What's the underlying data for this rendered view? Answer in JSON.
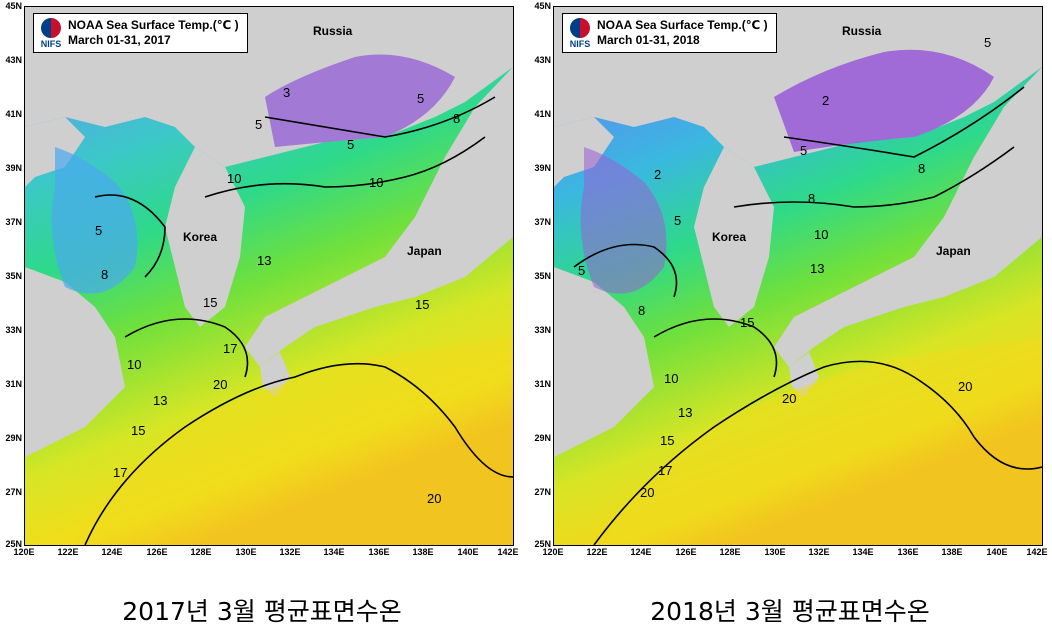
{
  "panels": [
    {
      "legend_title": "NOAA Sea Surface Temp.(℃ )",
      "legend_period": "March 01-31, 2017",
      "logo_text": "NIFS",
      "caption": "2017년 3월 평균표면수온",
      "geo_labels": {
        "russia": "Russia",
        "korea": "Korea",
        "japan": "Japan"
      },
      "isotherm_labels": [
        "3",
        "5",
        "5",
        "5",
        "5",
        "8",
        "8",
        "10",
        "10",
        "10",
        "13",
        "13",
        "15",
        "15",
        "15",
        "17",
        "17",
        "20",
        "20"
      ]
    },
    {
      "legend_title": "NOAA Sea Surface Temp.(℃ )",
      "legend_period": "March 01-31, 2018",
      "logo_text": "NIFS",
      "caption": "2018년 3월 평균표면수온",
      "geo_labels": {
        "russia": "Russia",
        "korea": "Korea",
        "japan": "Japan"
      },
      "isotherm_labels": [
        "2",
        "2",
        "5",
        "5",
        "5",
        "5",
        "8",
        "8",
        "8",
        "10",
        "10",
        "13",
        "13",
        "15",
        "15",
        "17",
        "20",
        "20",
        "20"
      ]
    }
  ],
  "lat_ticks": [
    "45N",
    "43N",
    "41N",
    "39N",
    "37N",
    "35N",
    "33N",
    "31N",
    "29N",
    "27N",
    "25N"
  ],
  "lon_ticks": [
    "120E",
    "122E",
    "124E",
    "126E",
    "128E",
    "130E",
    "132E",
    "134E",
    "136E",
    "138E",
    "140E",
    "142E"
  ],
  "colors": {
    "land": "#cfcfcf",
    "sst_cold": "#9b6fd6",
    "sst_cool": "#4aa8f0",
    "sst_mid": "#2ed18a",
    "sst_warm": "#8fe03a",
    "sst_hot": "#f2e21a",
    "sst_hottest": "#f5a623"
  }
}
